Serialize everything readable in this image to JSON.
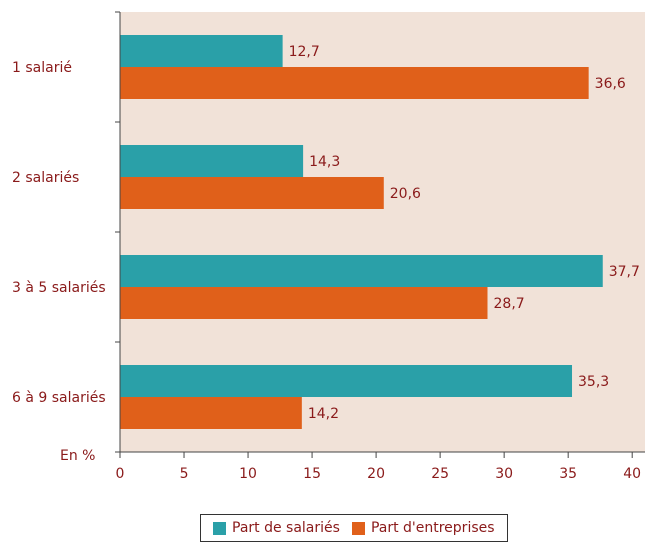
{
  "chart_data": {
    "type": "bar",
    "orientation": "horizontal",
    "categories": [
      "1 salarié",
      "2 salariés",
      "3 à 5 salariés",
      "6 à 9 salariés"
    ],
    "series": [
      {
        "name": "Part de salariés",
        "values": [
          12.7,
          14.3,
          37.7,
          35.3
        ],
        "labels": [
          "12,7",
          "14,3",
          "37,7",
          "35,3"
        ],
        "color": "#2aa0a8"
      },
      {
        "name": "Part d'entreprises",
        "values": [
          36.6,
          20.6,
          28.7,
          14.2
        ],
        "labels": [
          "36,6",
          "20,6",
          "28,7",
          "14,2"
        ],
        "color": "#e0601a"
      }
    ],
    "xlim": [
      0,
      41
    ],
    "xticks": [
      0,
      5,
      10,
      15,
      20,
      25,
      30,
      35,
      40
    ],
    "unit_label": "En %",
    "legend_position": "bottom",
    "plot_background": "#f1e2d8",
    "text_color": "#8a1a1a"
  }
}
